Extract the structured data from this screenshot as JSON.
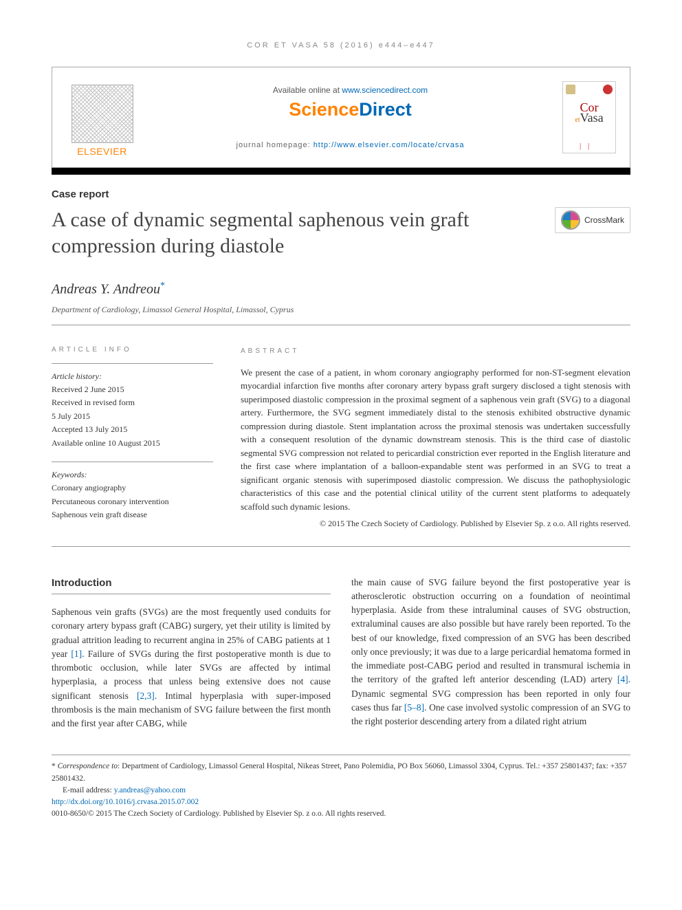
{
  "running_head": "COR ET VASA 58 (2016) e444–e447",
  "header": {
    "available_prefix": "Available online at ",
    "available_link": "www.sciencedirect.com",
    "brand_sci": "Science",
    "brand_direct": "Direct",
    "homepage_label": "journal homepage: ",
    "homepage_url": "http://www.elsevier.com/locate/crvasa",
    "elsevier": "ELSEVIER",
    "cover": {
      "cor": "Cor",
      "et": "et",
      "vasa": "Vasa"
    }
  },
  "article_type": "Case report",
  "title": "A case of dynamic segmental saphenous vein graft compression during diastole",
  "crossmark": "CrossMark",
  "author": "Andreas Y. Andreou",
  "author_mark": "*",
  "affiliation": "Department of Cardiology, Limassol General Hospital, Limassol, Cyprus",
  "info": {
    "heading": "ARTICLE INFO",
    "history_label": "Article history:",
    "received": "Received 2 June 2015",
    "revised1": "Received in revised form",
    "revised2": "5 July 2015",
    "accepted": "Accepted 13 July 2015",
    "online": "Available online 10 August 2015",
    "keywords_label": "Keywords:",
    "kw1": "Coronary angiography",
    "kw2": "Percutaneous coronary intervention",
    "kw3": "Saphenous vein graft disease"
  },
  "abstract": {
    "heading": "ABSTRACT",
    "text": "We present the case of a patient, in whom coronary angiography performed for non-ST-segment elevation myocardial infarction five months after coronary artery bypass graft surgery disclosed a tight stenosis with superimposed diastolic compression in the proximal segment of a saphenous vein graft (SVG) to a diagonal artery. Furthermore, the SVG segment immediately distal to the stenosis exhibited obstructive dynamic compression during diastole. Stent implantation across the proximal stenosis was undertaken successfully with a consequent resolution of the dynamic downstream stenosis. This is the third case of diastolic segmental SVG compression not related to pericardial constriction ever reported in the English literature and the first case where implantation of a balloon-expandable stent was performed in an SVG to treat a significant organic stenosis with superimposed diastolic compression. We discuss the pathophysiologic characteristics of this case and the potential clinical utility of the current stent platforms to adequately scaffold such dynamic lesions.",
    "copyright": "© 2015 The Czech Society of Cardiology. Published by Elsevier Sp. z o.o. All rights reserved."
  },
  "intro": {
    "heading": "Introduction",
    "p1a": "Saphenous vein grafts (SVGs) are the most frequently used conduits for coronary artery bypass graft (CABG) surgery, yet their utility is limited by gradual attrition leading to recurrent angina in 25% of CABG patients at 1 year ",
    "ref1": "[1]",
    "p1b": ". Failure of SVGs during the first postoperative month is due to thrombotic occlusion, while later SVGs are affected by intimal hyperplasia, a process that unless being extensive does not cause significant stenosis ",
    "ref23": "[2,3]",
    "p1c": ". Intimal hyperplasia with super-imposed thrombosis is the main mechanism of SVG failure between the first month and the first year after CABG, while",
    "p2a": "the main cause of SVG failure beyond the first postoperative year is atherosclerotic obstruction occurring on a foundation of neointimal hyperplasia. Aside from these intraluminal causes of SVG obstruction, extraluminal causes are also possible but have rarely been reported. To the best of our knowledge, fixed compression of an SVG has been described only once previously; it was due to a large pericardial hematoma formed in the immediate post-CABG period and resulted in transmural ischemia in the territory of the grafted left anterior descending (LAD) artery ",
    "ref4": "[4]",
    "p2b": ". Dynamic segmental SVG compression has been reported in only four cases thus far ",
    "ref58": "[5–8]",
    "p2c": ". One case involved systolic compression of an SVG to the right posterior descending artery from a dilated right atrium"
  },
  "footnotes": {
    "corr_label": "* ",
    "corr_prefix": "Correspondence to",
    "corr_text": ": Department of Cardiology, Limassol General Hospital, Nikeas Street, Pano Polemidia, PO Box 56060, Limassol 3304, Cyprus. Tel.: +357 25801437; fax: +357 25801432.",
    "email_label": "E-mail address: ",
    "email": "y.andreas@yahoo.com",
    "doi": "http://dx.doi.org/10.1016/j.crvasa.2015.07.002",
    "issn_line": "0010-8650/© 2015 The Czech Society of Cardiology. Published by Elsevier Sp. z o.o. All rights reserved."
  },
  "colors": {
    "link": "#0068b4",
    "orange": "#ff8200",
    "text": "#333333",
    "rule": "#999999"
  }
}
